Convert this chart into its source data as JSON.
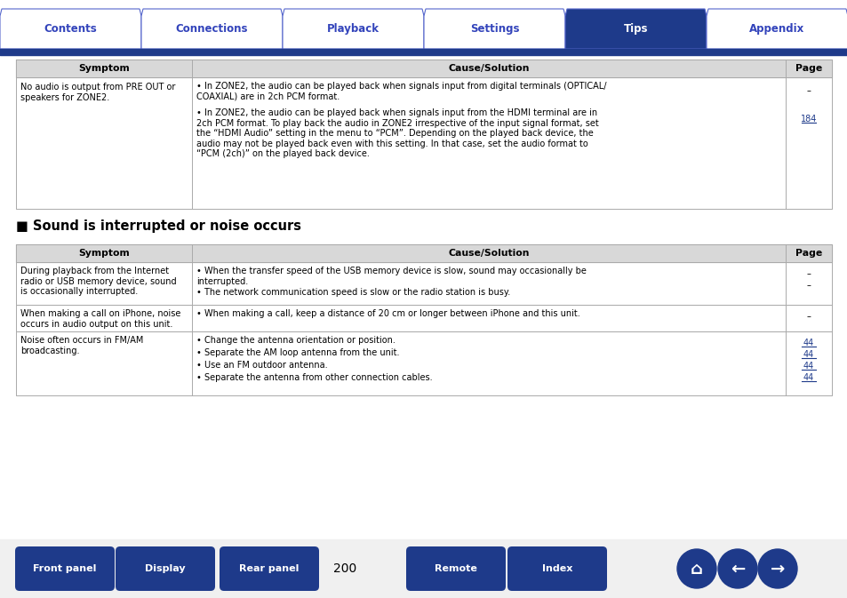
{
  "tab_labels": [
    "Contents",
    "Connections",
    "Playback",
    "Settings",
    "Tips",
    "Appendix"
  ],
  "active_tab": 4,
  "tab_active_color": "#1e3a8a",
  "tab_inactive_color": "#ffffff",
  "tab_active_text": "#ffffff",
  "tab_inactive_text": "#3344bb",
  "tab_border_color": "#5566cc",
  "nav_bar_color": "#1e3a8a",
  "header_bg": "#d8d8d8",
  "col_headers": [
    "Symptom",
    "Cause/Solution",
    "Page"
  ],
  "table1_symptom": "No audio is output from PRE OUT or\nspeakers for ZONE2.",
  "table1_cause1": "In ZONE2, the audio can be played back when signals input from digital terminals (OPTICAL/\nCOAXIAL) are in 2ch PCM format.",
  "table1_cause2": "In ZONE2, the audio can be played back when signals input from the HDMI terminal are in\n2ch PCM format. To play back the audio in ZONE2 irrespective of the input signal format, set\nthe “HDMI Audio” setting in the menu to “PCM”. Depending on the played back device, the\naudio may not be played back even with this setting. In that case, set the audio format to\n“PCM (2ch)” on the played back device.",
  "table1_page1": "–",
  "table1_page2": "184",
  "section_title": "■ Sound is interrupted or noise occurs",
  "table2_rows": [
    {
      "symptom": "During playback from the Internet\nradio or USB memory device, sound\nis occasionally interrupted.",
      "causes": [
        "When the transfer speed of the USB memory device is slow, sound may occasionally be\ninterrupted.",
        "The network communication speed is slow or the radio station is busy."
      ],
      "pages": [
        "–",
        "–"
      ]
    },
    {
      "symptom": "When making a call on iPhone, noise\noccurs in audio output on this unit.",
      "causes": [
        "When making a call, keep a distance of 20 cm or longer between iPhone and this unit."
      ],
      "pages": [
        "–"
      ]
    },
    {
      "symptom": "Noise often occurs in FM/AM\nbroadcasting.",
      "causes": [
        "Change the antenna orientation or position.",
        "Separate the AM loop antenna from the unit.",
        "Use an FM outdoor antenna.",
        "Separate the antenna from other connection cables."
      ],
      "pages": [
        "44",
        "44",
        "44",
        "44"
      ]
    }
  ],
  "page_number": "200",
  "bottom_buttons": [
    "Front panel",
    "Display",
    "Rear panel",
    "Remote",
    "Index"
  ],
  "btn_color": "#1e3a8a",
  "btn_text": "#ffffff",
  "bg_color": "#ffffff",
  "text_color": "#000000",
  "link_color": "#1e3a8a",
  "grid_color": "#aaaaaa",
  "font_body": 7.0,
  "font_header": 7.8,
  "font_section": 10.5
}
